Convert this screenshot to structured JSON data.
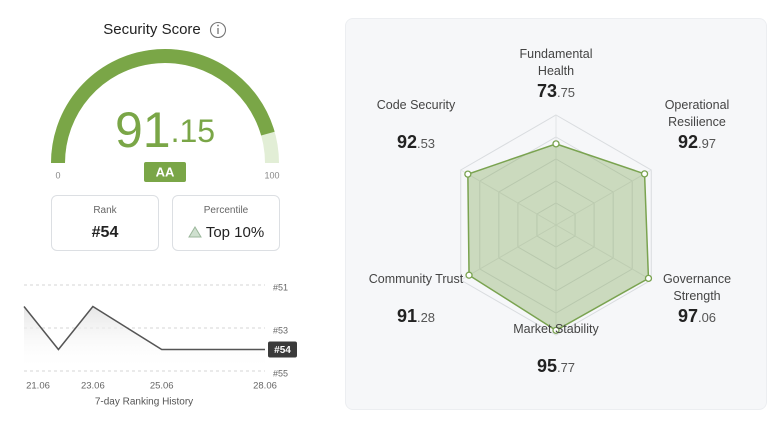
{
  "score_card": {
    "title": "Security Score",
    "rank_label": "Rank",
    "rank": "#54",
    "percentile_label": "Percentile",
    "percentile": "Top 10%"
  },
  "chart_data": [
    {
      "type": "gauge",
      "value": 91.15,
      "ylim": [
        0,
        100
      ],
      "yticks": [
        0,
        100
      ],
      "badge": "AA",
      "color": "#7aa647",
      "track_color": "#e2eed6"
    },
    {
      "type": "line",
      "title": "7-day Ranking History",
      "categories": [
        "21.06",
        null,
        "23.06",
        null,
        "25.06",
        null,
        null,
        "28.06"
      ],
      "values": [
        52,
        54,
        52,
        53,
        54,
        54,
        54,
        54
      ],
      "ylim": [
        55,
        51
      ],
      "yticks": [
        {
          "value": 51,
          "label": "#51"
        },
        {
          "value": 53,
          "label": "#53"
        },
        {
          "value": 55,
          "label": "#55"
        }
      ],
      "current": {
        "value": 54,
        "label": "#54"
      },
      "color": "#555555",
      "grid": true
    },
    {
      "type": "radar",
      "categories": [
        "Fundamental Health",
        "Operational Resilience",
        "Governance Strength",
        "Market Stability",
        "Community Trust",
        "Code Security"
      ],
      "values": [
        73.75,
        92.97,
        97.06,
        95.77,
        91.28,
        92.53
      ],
      "rlim": [
        0,
        100
      ],
      "rticks": [
        20,
        40,
        60,
        80,
        100
      ],
      "color": "#7aa350"
    }
  ]
}
